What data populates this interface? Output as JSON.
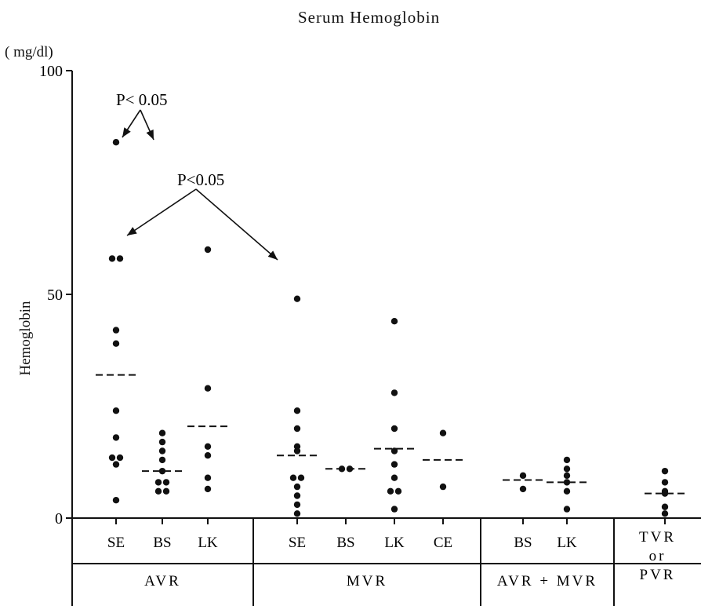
{
  "chart_data": {
    "type": "scatter",
    "title": "Serum Hemoglobin",
    "unit": "( mg/dl)",
    "ylabel": "Hemoglobin",
    "ylim": [
      0,
      100
    ],
    "yticks": [
      "0",
      "50",
      "100"
    ],
    "groups": [
      {
        "label": "AVR",
        "categories": [
          {
            "label": "SE",
            "mean": 32,
            "values": [
              84,
              58,
              58,
              42,
              39,
              24,
              18,
              13.5,
              13.5,
              12,
              4
            ]
          },
          {
            "label": "BS",
            "mean": 10.5,
            "values": [
              19,
              17,
              15,
              13,
              10.5,
              8,
              8,
              6,
              6
            ]
          },
          {
            "label": "LK",
            "mean": 20.5,
            "values": [
              60,
              29,
              16,
              14,
              9,
              6.5
            ]
          }
        ]
      },
      {
        "label": "MVR",
        "categories": [
          {
            "label": "SE",
            "mean": 14,
            "values": [
              49,
              24,
              20,
              16,
              15,
              9,
              9,
              7,
              5,
              3,
              1
            ]
          },
          {
            "label": "BS",
            "mean": 11,
            "values": [
              11,
              11
            ]
          },
          {
            "label": "LK",
            "mean": 15.5,
            "values": [
              44,
              28,
              20,
              15,
              12,
              9,
              6,
              6,
              2
            ]
          },
          {
            "label": "CE",
            "mean": 13,
            "values": [
              19,
              7
            ]
          }
        ]
      },
      {
        "label": "AVR + MVR",
        "categories": [
          {
            "label": "BS",
            "mean": 8.5,
            "values": [
              9.5,
              6.5
            ]
          },
          {
            "label": "LK",
            "mean": 8,
            "values": [
              13,
              11,
              9.5,
              8,
              6,
              2
            ]
          }
        ]
      },
      {
        "label": "TVR\nor\nPVR",
        "categories": [
          {
            "label": "",
            "mean": 5.5,
            "values": [
              10.5,
              8,
              6,
              5.5,
              2.5,
              1
            ]
          }
        ]
      }
    ],
    "annotations": [
      {
        "text": "P< 0.05",
        "from": "AVR SE",
        "to": "AVR BS"
      },
      {
        "text": "P<0.05",
        "from": "AVR SE",
        "to": "MVR SE"
      }
    ]
  }
}
